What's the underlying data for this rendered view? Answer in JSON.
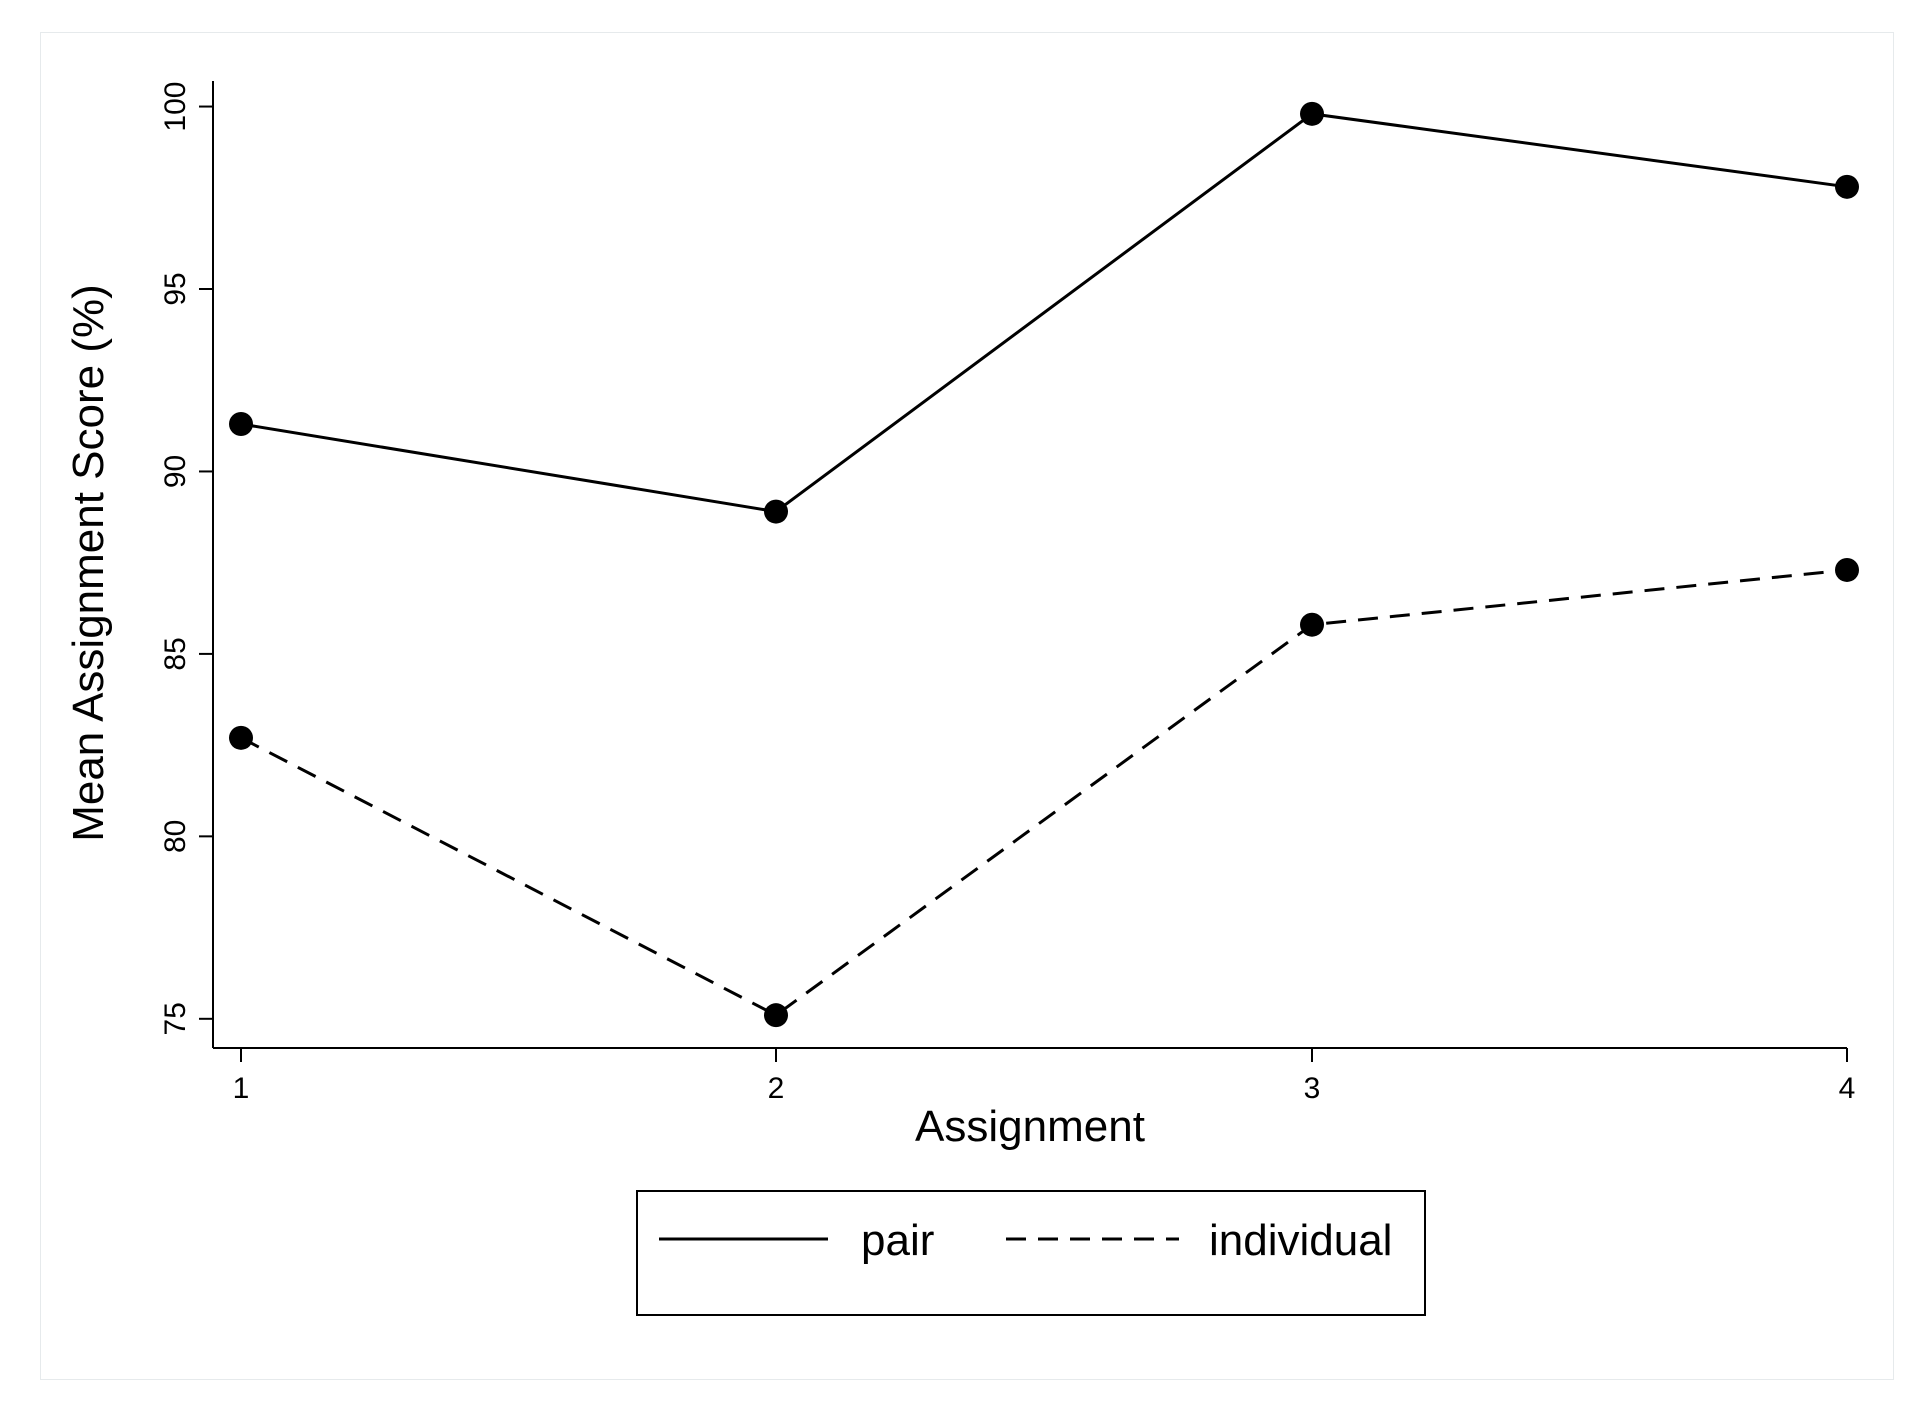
{
  "chart_data": {
    "type": "line",
    "title": "",
    "xlabel": "Assignment",
    "ylabel": "Mean Assignment Score (%)",
    "x": [
      1,
      2,
      3,
      4
    ],
    "x_ticks": [
      "1",
      "2",
      "3",
      "4"
    ],
    "y_ticks": [
      "75",
      "80",
      "85",
      "90",
      "95",
      "100"
    ],
    "ylim": [
      74.2,
      100.7
    ],
    "grid": false,
    "legend_position": "bottom",
    "series": [
      {
        "name": "pair",
        "values": [
          91.3,
          88.9,
          99.8,
          97.8
        ],
        "line_style": "solid",
        "color": "#000000"
      },
      {
        "name": "individual",
        "values": [
          82.7,
          75.1,
          85.8,
          87.3
        ],
        "line_style": "dashed",
        "color": "#000000"
      }
    ]
  }
}
